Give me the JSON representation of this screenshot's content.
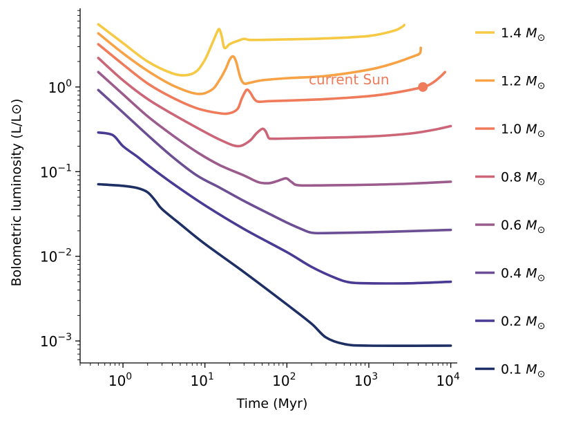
{
  "chart_data": {
    "type": "line",
    "xlabel": "Time (Myr)",
    "ylabel": "Bolometric luminosity (L/L⊙)",
    "xscale": "log",
    "yscale": "log",
    "xlim": [
      0.3,
      12000
    ],
    "ylim": [
      0.00055,
      8.5
    ],
    "x_ticks": [
      {
        "value": 1,
        "base": "10",
        "exp": "0"
      },
      {
        "value": 10,
        "base": "10",
        "exp": "1"
      },
      {
        "value": 100,
        "base": "10",
        "exp": "2"
      },
      {
        "value": 1000,
        "base": "10",
        "exp": "3"
      },
      {
        "value": 10000,
        "base": "10",
        "exp": "4"
      }
    ],
    "y_ticks": [
      {
        "value": 0.001,
        "base": "10",
        "exp": "−3"
      },
      {
        "value": 0.01,
        "base": "10",
        "exp": "−2"
      },
      {
        "value": 0.1,
        "base": "10",
        "exp": "−1"
      },
      {
        "value": 1,
        "base": "10",
        "exp": "0"
      }
    ],
    "grid": false,
    "legend": "right",
    "series": [
      {
        "name": "1.4 M⊙",
        "color": "#f6c945",
        "points": [
          [
            0.5,
            5.5
          ],
          [
            1,
            3.3
          ],
          [
            2,
            2.0
          ],
          [
            4,
            1.45
          ],
          [
            6,
            1.38
          ],
          [
            8,
            1.55
          ],
          [
            10,
            2.1
          ],
          [
            12,
            3.1
          ],
          [
            14,
            4.4
          ],
          [
            15,
            4.8
          ],
          [
            16,
            4.0
          ],
          [
            17,
            3.0
          ],
          [
            18,
            2.9
          ],
          [
            20,
            3.2
          ],
          [
            25,
            3.5
          ],
          [
            30,
            3.7
          ],
          [
            35,
            3.6
          ],
          [
            50,
            3.6
          ],
          [
            100,
            3.65
          ],
          [
            300,
            3.75
          ],
          [
            1000,
            4.0
          ],
          [
            2000,
            4.6
          ],
          [
            2600,
            5.2
          ],
          [
            2700,
            5.4
          ]
        ]
      },
      {
        "name": "1.2 M⊙",
        "color": "#f8a246",
        "points": [
          [
            0.5,
            4.3
          ],
          [
            1,
            2.5
          ],
          [
            2,
            1.55
          ],
          [
            4,
            1.05
          ],
          [
            8,
            0.83
          ],
          [
            12,
            0.92
          ],
          [
            15,
            1.2
          ],
          [
            18,
            1.65
          ],
          [
            20,
            2.1
          ],
          [
            22,
            2.3
          ],
          [
            24,
            2.0
          ],
          [
            27,
            1.3
          ],
          [
            30,
            1.1
          ],
          [
            35,
            1.12
          ],
          [
            50,
            1.2
          ],
          [
            100,
            1.27
          ],
          [
            300,
            1.35
          ],
          [
            1000,
            1.6
          ],
          [
            2000,
            1.9
          ],
          [
            3500,
            2.3
          ],
          [
            4200,
            2.5
          ],
          [
            4300,
            2.9
          ]
        ]
      },
      {
        "name": "1.0 M⊙",
        "color": "#ef7b5a",
        "points": [
          [
            0.5,
            3.2
          ],
          [
            1,
            1.85
          ],
          [
            2,
            1.1
          ],
          [
            4,
            0.75
          ],
          [
            8,
            0.56
          ],
          [
            15,
            0.49
          ],
          [
            20,
            0.49
          ],
          [
            25,
            0.55
          ],
          [
            28,
            0.72
          ],
          [
            31,
            0.88
          ],
          [
            33,
            0.93
          ],
          [
            36,
            0.85
          ],
          [
            40,
            0.72
          ],
          [
            45,
            0.67
          ],
          [
            60,
            0.68
          ],
          [
            100,
            0.69
          ],
          [
            300,
            0.72
          ],
          [
            1000,
            0.78
          ],
          [
            2000,
            0.85
          ],
          [
            4570,
            1.0
          ],
          [
            6000,
            1.12
          ],
          [
            7500,
            1.33
          ],
          [
            8500,
            1.5
          ]
        ]
      },
      {
        "name": "0.8 M⊙",
        "color": "#cc6577",
        "points": [
          [
            0.5,
            2.2
          ],
          [
            1,
            1.2
          ],
          [
            2,
            0.72
          ],
          [
            4,
            0.48
          ],
          [
            8,
            0.33
          ],
          [
            15,
            0.24
          ],
          [
            25,
            0.2
          ],
          [
            35,
            0.23
          ],
          [
            42,
            0.28
          ],
          [
            50,
            0.32
          ],
          [
            55,
            0.3
          ],
          [
            60,
            0.25
          ],
          [
            65,
            0.245
          ],
          [
            80,
            0.245
          ],
          [
            200,
            0.25
          ],
          [
            1000,
            0.26
          ],
          [
            3000,
            0.28
          ],
          [
            6000,
            0.31
          ],
          [
            10000,
            0.345
          ]
        ]
      },
      {
        "name": "0.6 M⊙",
        "color": "#9b5b8d",
        "points": [
          [
            0.5,
            1.5
          ],
          [
            1,
            0.82
          ],
          [
            2,
            0.45
          ],
          [
            4,
            0.27
          ],
          [
            8,
            0.17
          ],
          [
            15,
            0.12
          ],
          [
            30,
            0.09
          ],
          [
            45,
            0.075
          ],
          [
            60,
            0.073
          ],
          [
            75,
            0.077
          ],
          [
            90,
            0.082
          ],
          [
            100,
            0.083
          ],
          [
            115,
            0.075
          ],
          [
            140,
            0.069
          ],
          [
            300,
            0.069
          ],
          [
            1000,
            0.07
          ],
          [
            3000,
            0.072
          ],
          [
            10000,
            0.076
          ]
        ]
      },
      {
        "name": "0.4 M⊙",
        "color": "#6b4e93",
        "points": [
          [
            0.5,
            0.92
          ],
          [
            1,
            0.5
          ],
          [
            2,
            0.27
          ],
          [
            4,
            0.15
          ],
          [
            8,
            0.09
          ],
          [
            15,
            0.065
          ],
          [
            30,
            0.045
          ],
          [
            60,
            0.032
          ],
          [
            100,
            0.025
          ],
          [
            150,
            0.021
          ],
          [
            200,
            0.019
          ],
          [
            300,
            0.0188
          ],
          [
            1000,
            0.0192
          ],
          [
            3000,
            0.0198
          ],
          [
            10000,
            0.0205
          ]
        ]
      },
      {
        "name": "0.2 M⊙",
        "color": "#4a3a94",
        "points": [
          [
            0.5,
            0.29
          ],
          [
            0.75,
            0.27
          ],
          [
            1,
            0.2
          ],
          [
            1.5,
            0.15
          ],
          [
            2,
            0.12
          ],
          [
            4,
            0.073
          ],
          [
            10,
            0.04
          ],
          [
            30,
            0.021
          ],
          [
            100,
            0.0112
          ],
          [
            200,
            0.0075
          ],
          [
            400,
            0.0055
          ],
          [
            600,
            0.0049
          ],
          [
            1000,
            0.0048
          ],
          [
            3000,
            0.0048
          ],
          [
            10000,
            0.005
          ]
        ]
      },
      {
        "name": "0.1 M⊙",
        "color": "#1d2f64",
        "points": [
          [
            0.5,
            0.071
          ],
          [
            1,
            0.068
          ],
          [
            1.5,
            0.064
          ],
          [
            2,
            0.057
          ],
          [
            2.5,
            0.045
          ],
          [
            3,
            0.036
          ],
          [
            5,
            0.024
          ],
          [
            10,
            0.014
          ],
          [
            30,
            0.0065
          ],
          [
            100,
            0.0027
          ],
          [
            200,
            0.0016
          ],
          [
            300,
            0.0011
          ],
          [
            500,
            0.00092
          ],
          [
            1000,
            0.00088
          ],
          [
            10000,
            0.00088
          ]
        ]
      }
    ],
    "annotation": {
      "text": "current Sun",
      "marker_x": 4570,
      "marker_y": 1.0,
      "text_x": 200,
      "text_y": 1.07,
      "color": "#ef7b5a"
    }
  }
}
